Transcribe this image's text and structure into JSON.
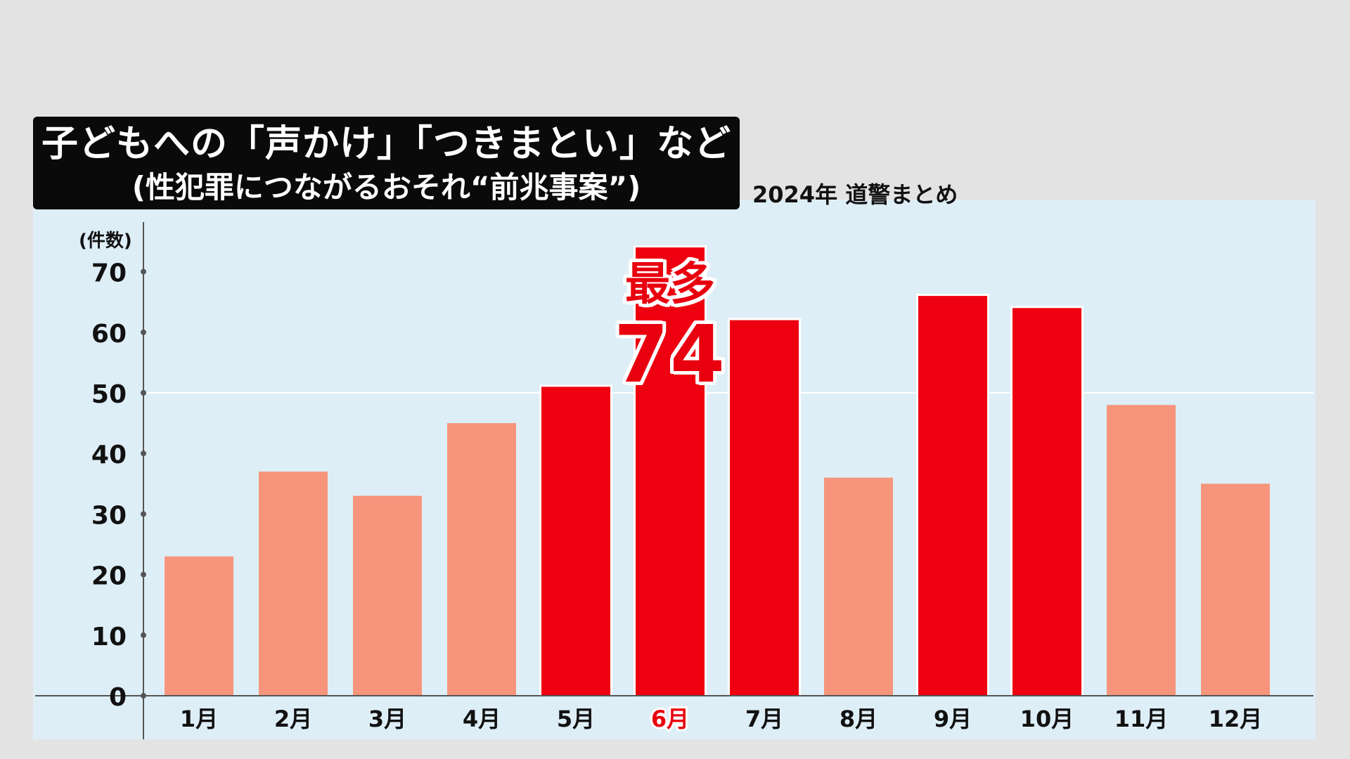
{
  "title": {
    "line1": "子どもへの「声かけ」「つきまとい」など",
    "line2": "(性犯罪につながるおそれ“前兆事案”)"
  },
  "source_note": "2024年 道警まとめ",
  "callout": {
    "label": "最多",
    "value": "74"
  },
  "colors": {
    "highlight": "#ee0010",
    "normal": "#f6957c",
    "highlight_label": "#e8000f",
    "axis": "#555555",
    "background": "#deeef7"
  },
  "chart_data": {
    "type": "bar",
    "ylabel": "(件数)",
    "ylim": [
      0,
      70
    ],
    "yticks": [
      0,
      10,
      20,
      30,
      40,
      50,
      60,
      70
    ],
    "gridlines": [
      50
    ],
    "categories": [
      "1月",
      "2月",
      "3月",
      "4月",
      "5月",
      "6月",
      "7月",
      "8月",
      "9月",
      "10月",
      "11月",
      "12月"
    ],
    "values": [
      23,
      37,
      33,
      45,
      51,
      74,
      62,
      36,
      66,
      64,
      48,
      35
    ],
    "highlighted": [
      false,
      false,
      false,
      false,
      true,
      true,
      true,
      false,
      true,
      true,
      false,
      false
    ],
    "emphasized_category": "6月"
  }
}
